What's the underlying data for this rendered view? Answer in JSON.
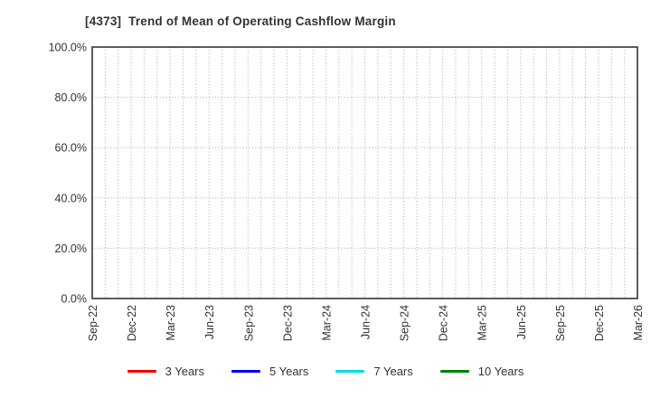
{
  "title": "[4373]  Trend of Mean of Operating Cashflow Margin",
  "chart_data": {
    "type": "line",
    "title": "[4373]  Trend of Mean of Operating Cashflow Margin",
    "x_tick_labels": [
      "Sep-22",
      "Dec-22",
      "Mar-23",
      "Jun-23",
      "Sep-23",
      "Dec-23",
      "Mar-24",
      "Jun-24",
      "Sep-24",
      "Dec-24",
      "Mar-25",
      "Jun-25",
      "Sep-25",
      "Dec-25",
      "Mar-26"
    ],
    "minor_x_divisions_per_labeled_interval": 3,
    "y_tick_labels": [
      "0.0%",
      "20.0%",
      "40.0%",
      "60.0%",
      "80.0%",
      "100.0%"
    ],
    "y_tick_values": [
      0,
      20,
      40,
      60,
      80,
      100
    ],
    "ylim": [
      0,
      100
    ],
    "y_unit": "%",
    "grid": "dotted",
    "legend_position": "bottom",
    "series": [
      {
        "name": "3 Years",
        "color": "#ee0000",
        "values": []
      },
      {
        "name": "5 Years",
        "color": "#0000ee",
        "values": []
      },
      {
        "name": "7 Years",
        "color": "#00dde6",
        "values": []
      },
      {
        "name": "10 Years",
        "color": "#008000",
        "values": []
      }
    ]
  },
  "styles": {
    "text_color": "#333333",
    "frame_color": "#262626",
    "grid_color": "#a9a9a9",
    "background": "#ffffff"
  }
}
